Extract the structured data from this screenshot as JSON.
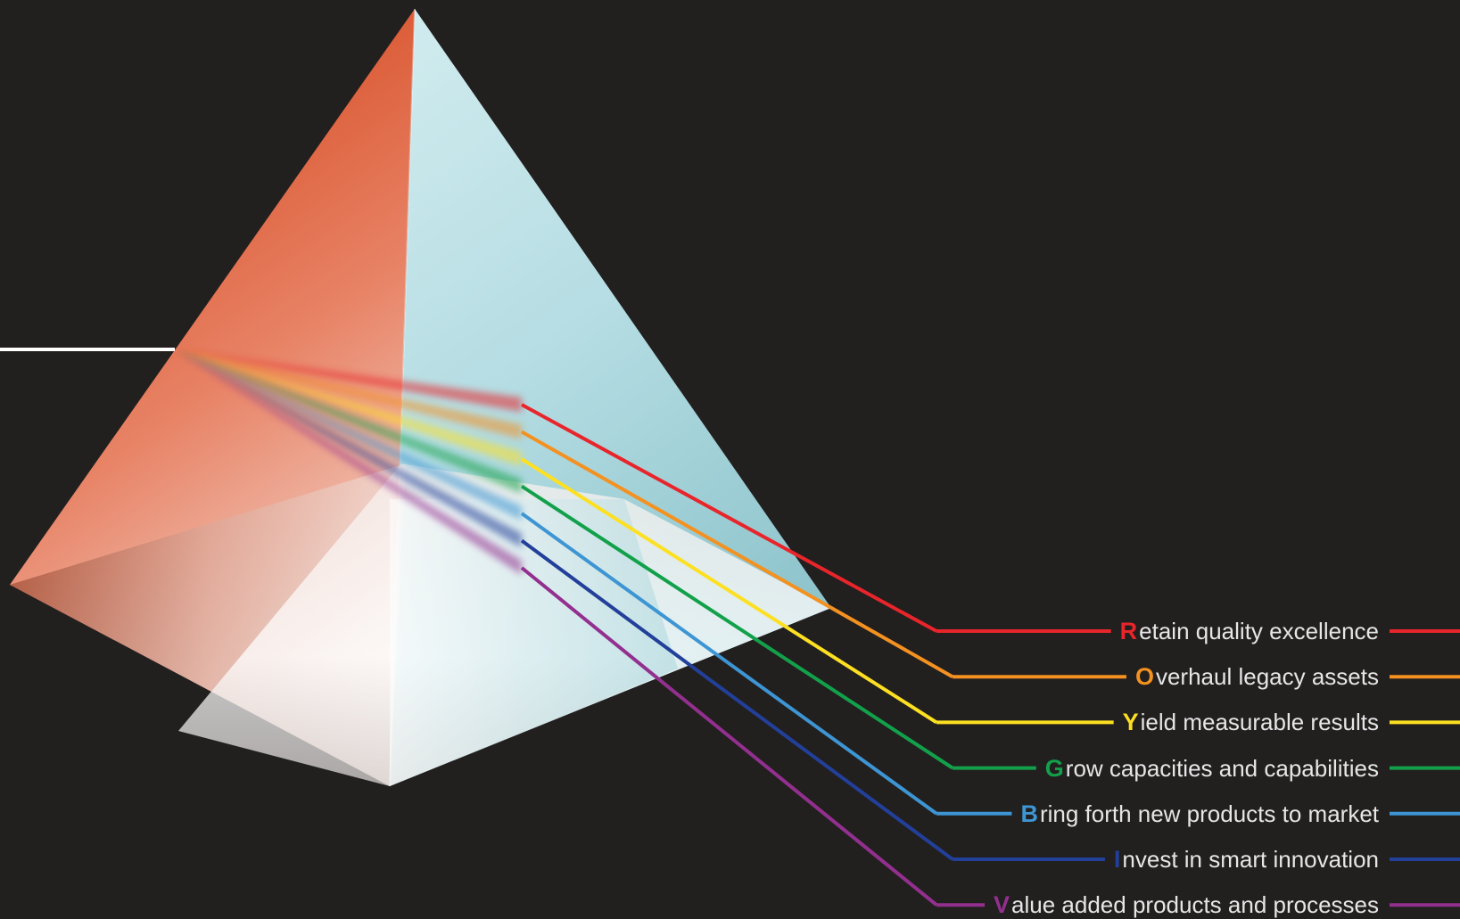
{
  "colors": {
    "background": "#221f1f",
    "label_text": "#e6e6e6",
    "incoming_beam": "#ffffff"
  },
  "items": [
    {
      "letter": "R",
      "rest": "etain quality excellence",
      "color": "#e8252a"
    },
    {
      "letter": "O",
      "rest": "verhaul legacy assets",
      "color": "#f39121"
    },
    {
      "letter": "Y",
      "rest": "ield measurable results",
      "color": "#fde021"
    },
    {
      "letter": "G",
      "rest": "row capacities and capabilities",
      "color": "#12a14a"
    },
    {
      "letter": "B",
      "rest": "ring forth new products to market",
      "color": "#3d95d3"
    },
    {
      "letter": "I",
      "rest": "nvest in smart innovation",
      "color": "#22409a"
    },
    {
      "letter": "V",
      "rest": "alue added products and processes",
      "color": "#93308f"
    }
  ]
}
